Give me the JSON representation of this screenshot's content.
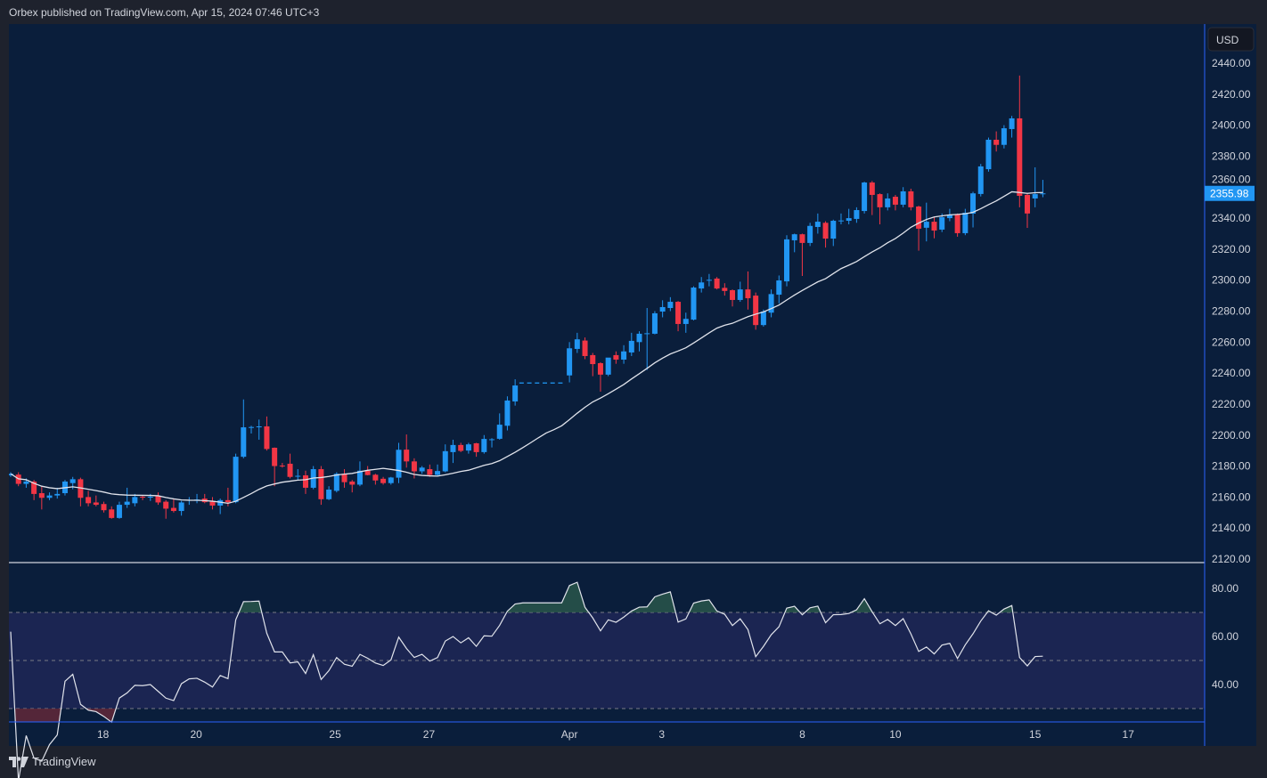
{
  "header": {
    "published": "Orbex published on TradingView.com, Apr 15, 2024 07:46 UTC+3"
  },
  "footer": {
    "brand": "TradingView",
    "logo_text": "TV"
  },
  "price_axis": {
    "currency": "USD",
    "current_price_label": "2355.98"
  },
  "colors": {
    "up": "#2196f3",
    "down": "#f23645",
    "background": "#0a1e3b",
    "ma": "#e0e3eb",
    "rsi": "#e0e3eb",
    "rsi_band": "#1b2552",
    "axis_line": "#2962ff"
  },
  "chart_data": {
    "type": "candlestick",
    "title": "",
    "price_range": [
      2120,
      2440
    ],
    "price_ticks": [
      "2120.00",
      "2140.00",
      "2160.00",
      "2180.00",
      "2200.00",
      "2220.00",
      "2240.00",
      "2260.00",
      "2280.00",
      "2300.00",
      "2320.00",
      "2340.00",
      "2360.00",
      "2380.00",
      "2400.00",
      "2420.00",
      "2440.00"
    ],
    "time_ticks": [
      {
        "label": "18",
        "bar": 11.9
      },
      {
        "label": "20",
        "bar": 23.9
      },
      {
        "label": "25",
        "bar": 41.8
      },
      {
        "label": "27",
        "bar": 53.9
      },
      {
        "label": "Apr",
        "bar": 72
      },
      {
        "label": "3",
        "bar": 83.9
      },
      {
        "label": "8",
        "bar": 102
      },
      {
        "label": "10",
        "bar": 114
      },
      {
        "label": "15",
        "bar": 132
      },
      {
        "label": "17",
        "bar": 144
      }
    ],
    "ma_period": 20,
    "rsi_period": 14,
    "rsi_range": [
      20,
      90
    ],
    "rsi_ticks": [
      "80.00",
      "60.00",
      "40.00"
    ],
    "rsi_levels": [
      70,
      50,
      30
    ],
    "ohlc": [
      [
        2174,
        2176,
        2173,
        2175
      ],
      [
        2174.5,
        2176,
        2167,
        2168.5
      ],
      [
        2168.5,
        2172,
        2166,
        2170
      ],
      [
        2170,
        2171,
        2158,
        2162
      ],
      [
        2162.5,
        2167,
        2152,
        2159.5
      ],
      [
        2159.5,
        2163,
        2158,
        2161
      ],
      [
        2161,
        2166,
        2159,
        2162
      ],
      [
        2162.5,
        2171,
        2161,
        2170
      ],
      [
        2169,
        2173,
        2165,
        2171.5
      ],
      [
        2171.5,
        2172.5,
        2154,
        2159.5
      ],
      [
        2160,
        2164,
        2154,
        2156
      ],
      [
        2156.5,
        2161,
        2154,
        2155
      ],
      [
        2155.5,
        2157,
        2150,
        2151.5
      ],
      [
        2152,
        2154,
        2146,
        2146.5
      ],
      [
        2146.5,
        2157,
        2146,
        2155
      ],
      [
        2155,
        2166,
        2153,
        2157
      ],
      [
        2156,
        2162,
        2154,
        2160
      ],
      [
        2160.2,
        2161,
        2158,
        2159.8
      ],
      [
        2159.8,
        2162,
        2157.5,
        2160.2
      ],
      [
        2160.5,
        2163,
        2155,
        2156.5
      ],
      [
        2157,
        2158,
        2146,
        2152.5
      ],
      [
        2153,
        2159,
        2150,
        2151
      ],
      [
        2151,
        2157.5,
        2148,
        2156.5
      ],
      [
        2157.8,
        2160,
        2155,
        2158.2
      ],
      [
        2158,
        2162,
        2156,
        2158.4
      ],
      [
        2159,
        2162,
        2156,
        2156.7
      ],
      [
        2157,
        2160,
        2152,
        2154.5
      ],
      [
        2154.5,
        2159,
        2149,
        2158
      ],
      [
        2158,
        2166,
        2154,
        2156.7
      ],
      [
        2156.7,
        2188,
        2156,
        2186
      ],
      [
        2186,
        2223,
        2185,
        2205
      ],
      [
        2204.8,
        2206,
        2201,
        2205.2
      ],
      [
        2205.2,
        2210,
        2197,
        2205.6
      ],
      [
        2205.6,
        2212,
        2190,
        2191
      ],
      [
        2191.8,
        2192,
        2167,
        2180
      ],
      [
        2180.3,
        2182,
        2179,
        2180
      ],
      [
        2181.5,
        2188,
        2172,
        2173
      ],
      [
        2173.2,
        2178,
        2171,
        2173.7
      ],
      [
        2174,
        2177,
        2162,
        2166
      ],
      [
        2166,
        2180,
        2165,
        2178
      ],
      [
        2178,
        2180,
        2155,
        2158.6
      ],
      [
        2158.6,
        2167,
        2158,
        2164.8
      ],
      [
        2164,
        2176,
        2163,
        2175
      ],
      [
        2175,
        2178,
        2166,
        2169.6
      ],
      [
        2170,
        2171,
        2163,
        2168
      ],
      [
        2168,
        2183,
        2167,
        2177
      ],
      [
        2177,
        2180,
        2174,
        2174.2
      ],
      [
        2174.4,
        2175,
        2168,
        2170.7
      ],
      [
        2171.8,
        2173,
        2168,
        2169
      ],
      [
        2169,
        2173,
        2168,
        2172.6
      ],
      [
        2172.5,
        2195,
        2169,
        2190.5
      ],
      [
        2190.6,
        2200.4,
        2179,
        2183
      ],
      [
        2183,
        2185,
        2172,
        2176.6
      ],
      [
        2176.6,
        2180,
        2175,
        2179
      ],
      [
        2178,
        2181,
        2173,
        2174.3
      ],
      [
        2174.3,
        2181,
        2173.8,
        2176.8
      ],
      [
        2176.6,
        2194,
        2176,
        2189.6
      ],
      [
        2189,
        2197,
        2182,
        2193.6
      ],
      [
        2193.6,
        2195,
        2189,
        2189.8
      ],
      [
        2190,
        2195,
        2188,
        2194
      ],
      [
        2194.7,
        2195,
        2186,
        2189
      ],
      [
        2189,
        2200,
        2188,
        2197.5
      ],
      [
        2197,
        2198,
        2192,
        2197.3
      ],
      [
        2197.6,
        2214,
        2197,
        2206.7
      ],
      [
        2206,
        2225,
        2203,
        2222.3
      ],
      [
        2221.7,
        2236,
        2219,
        2232
      ],
      [
        2233.6,
        2233.6,
        2233.6,
        2233.6
      ],
      [
        2233.6,
        2233.6,
        2233.6,
        2233.6
      ],
      [
        2233.6,
        2233.6,
        2233.6,
        2233.6
      ],
      [
        2233.6,
        2233.6,
        2233.6,
        2233.6
      ],
      [
        2233.6,
        2233.6,
        2233.6,
        2233.6
      ],
      [
        2233.6,
        2233.6,
        2233.6,
        2233.6
      ],
      [
        2238.5,
        2260,
        2234,
        2256
      ],
      [
        2255.6,
        2266,
        2253,
        2261.8
      ],
      [
        2261,
        2263,
        2249,
        2251
      ],
      [
        2251.6,
        2253,
        2238,
        2245.8
      ],
      [
        2246.4,
        2247,
        2228,
        2239
      ],
      [
        2239,
        2249,
        2238,
        2250
      ],
      [
        2251.6,
        2254,
        2246,
        2248.7
      ],
      [
        2248.7,
        2258,
        2246,
        2254
      ],
      [
        2253.3,
        2266,
        2251,
        2260.8
      ],
      [
        2260,
        2267,
        2254,
        2265.4
      ],
      [
        2265.3,
        2282,
        2242,
        2265.7
      ],
      [
        2265.4,
        2280,
        2265,
        2278.6
      ],
      [
        2279.7,
        2287,
        2276,
        2282.6
      ],
      [
        2282,
        2289,
        2280,
        2286
      ],
      [
        2286,
        2286.5,
        2267,
        2271.7
      ],
      [
        2271.7,
        2279,
        2266,
        2275
      ],
      [
        2274.5,
        2296,
        2274,
        2295.2
      ],
      [
        2294.6,
        2302,
        2292,
        2298.5
      ],
      [
        2299.8,
        2304,
        2296,
        2300.2
      ],
      [
        2301,
        2302,
        2294,
        2294.6
      ],
      [
        2295,
        2298,
        2290,
        2293
      ],
      [
        2293.5,
        2294,
        2283,
        2287.2
      ],
      [
        2287.2,
        2299,
        2286,
        2294
      ],
      [
        2294,
        2305.6,
        2281,
        2288.3
      ],
      [
        2290,
        2292,
        2268,
        2271
      ],
      [
        2271,
        2281,
        2270,
        2279.7
      ],
      [
        2279,
        2294,
        2276,
        2291
      ],
      [
        2290.6,
        2303,
        2285,
        2299.8
      ],
      [
        2299.2,
        2329,
        2296,
        2326.3
      ],
      [
        2325.7,
        2330,
        2318,
        2329.6
      ],
      [
        2329.6,
        2330,
        2302.7,
        2324
      ],
      [
        2324,
        2337,
        2322,
        2335
      ],
      [
        2334.3,
        2343,
        2330,
        2337.7
      ],
      [
        2337,
        2338,
        2321,
        2326.8
      ],
      [
        2326.8,
        2339,
        2322,
        2338.3
      ],
      [
        2338,
        2343,
        2336,
        2338.5
      ],
      [
        2338.3,
        2346,
        2336,
        2340
      ],
      [
        2339.5,
        2347,
        2337,
        2345.2
      ],
      [
        2344.6,
        2363.5,
        2343,
        2363
      ],
      [
        2363,
        2364,
        2342,
        2355
      ],
      [
        2355.5,
        2356,
        2336,
        2347
      ],
      [
        2347,
        2356,
        2345,
        2352.7
      ],
      [
        2353.8,
        2355,
        2345,
        2348.7
      ],
      [
        2348.7,
        2360,
        2347,
        2357.3
      ],
      [
        2357.3,
        2359,
        2345,
        2347
      ],
      [
        2347.5,
        2348,
        2319,
        2333.2
      ],
      [
        2333.8,
        2350,
        2325,
        2337.7
      ],
      [
        2337.7,
        2341,
        2327,
        2332
      ],
      [
        2332.6,
        2343,
        2331,
        2340.6
      ],
      [
        2340,
        2346,
        2338,
        2342.3
      ],
      [
        2342.3,
        2343,
        2328,
        2330.3
      ],
      [
        2330.3,
        2346,
        2329,
        2343.5
      ],
      [
        2342.9,
        2357,
        2334,
        2356
      ],
      [
        2355.6,
        2375,
        2354,
        2373.4
      ],
      [
        2371.6,
        2392,
        2370,
        2390.6
      ],
      [
        2390.6,
        2396,
        2383,
        2387.3
      ],
      [
        2387.3,
        2400,
        2385,
        2398
      ],
      [
        2397.5,
        2406,
        2392,
        2404.4
      ],
      [
        2404.4,
        2432,
        2347,
        2354.4
      ],
      [
        2355,
        2356,
        2333.7,
        2343
      ],
      [
        2352.7,
        2372.8,
        2347,
        2355.5
      ],
      [
        2355.6,
        2364.7,
        2353.5,
        2355.98
      ]
    ]
  }
}
